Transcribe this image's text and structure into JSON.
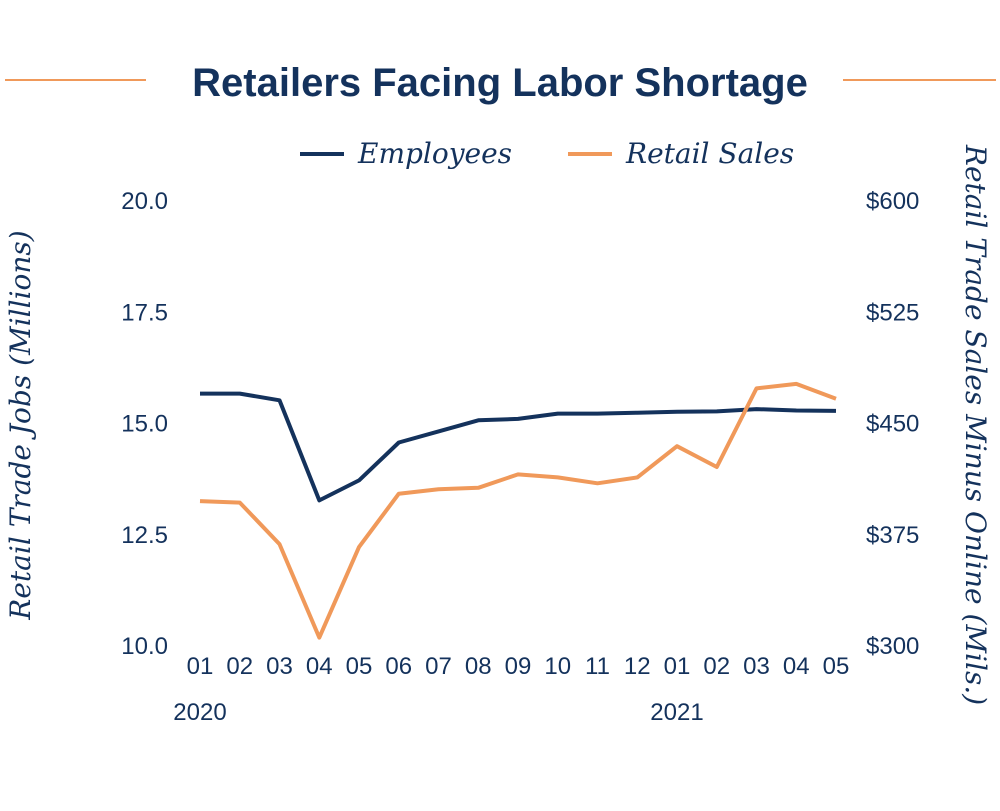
{
  "chart_data": {
    "type": "line",
    "title": "Retailers Facing Labor Shortage",
    "colors": {
      "title": "#14325c",
      "employees": "#14325c",
      "retail_sales": "#f0995a",
      "rule": "#f0995a"
    },
    "x_ticks": [
      "01",
      "02",
      "03",
      "04",
      "05",
      "06",
      "07",
      "08",
      "09",
      "10",
      "11",
      "12",
      "01",
      "02",
      "03",
      "04",
      "05"
    ],
    "x_years": [
      {
        "label": "2020",
        "index": 0
      },
      {
        "label": "2021",
        "index": 12
      }
    ],
    "x_dates": [
      "2020-01",
      "2020-02",
      "2020-03",
      "2020-04",
      "2020-05",
      "2020-06",
      "2020-07",
      "2020-08",
      "2020-09",
      "2020-10",
      "2020-11",
      "2020-12",
      "2021-01",
      "2021-02",
      "2021-03",
      "2021-04",
      "2021-05"
    ],
    "y_left": {
      "label": "Retail Trade Jobs (Millions)",
      "ylim": [
        10.0,
        20.0
      ],
      "ticks": [
        "20.0",
        "17.5",
        "15.0",
        "12.5",
        "10.0"
      ],
      "tick_values": [
        20.0,
        17.5,
        15.0,
        12.5,
        10.0
      ]
    },
    "y_right": {
      "label": "Retail Trade Sales Minus Online (Mils.)",
      "ylim": [
        300,
        600
      ],
      "ticks": [
        "$600",
        "$525",
        "$450",
        "$375",
        "$300"
      ],
      "tick_values": [
        600,
        525,
        450,
        375,
        300
      ]
    },
    "series": [
      {
        "name": "Employees",
        "axis": "left",
        "values": [
          15.65,
          15.65,
          15.5,
          13.25,
          13.7,
          14.55,
          14.8,
          15.05,
          15.08,
          15.2,
          15.2,
          15.22,
          15.24,
          15.25,
          15.3,
          15.27,
          15.26
        ]
      },
      {
        "name": "Retail Sales",
        "axis": "right",
        "values": [
          397,
          396,
          368,
          305,
          366,
          402,
          405,
          406,
          415,
          413,
          409,
          413,
          434,
          420,
          473,
          476,
          466
        ]
      }
    ],
    "legend_placement": "top-center",
    "grid": false
  }
}
